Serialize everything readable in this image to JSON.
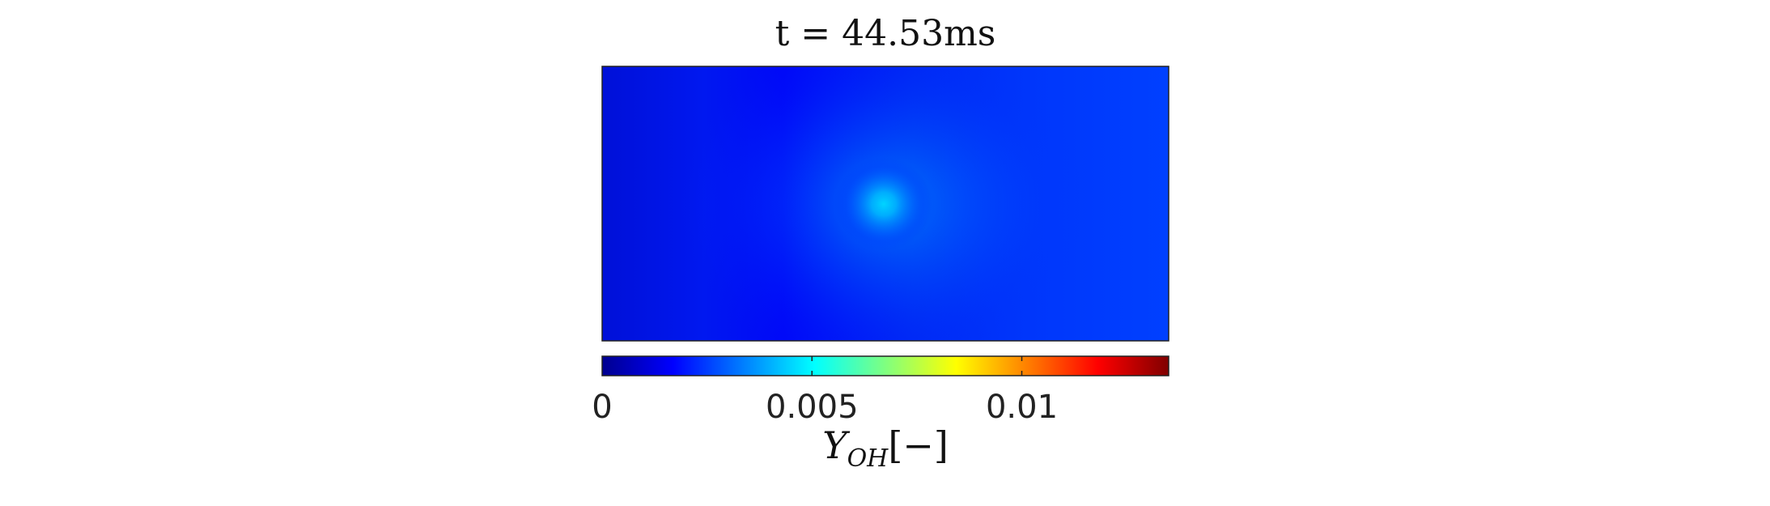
{
  "chart_data": {
    "type": "heatmap",
    "title": "t = 44.53ms",
    "field": "Y_OH",
    "colorbar": {
      "label_main": "Y",
      "label_sub": "OH",
      "label_unit": "[−]",
      "min": 0,
      "max": 0.0135,
      "ticks": [
        {
          "value": 0,
          "label": "0"
        },
        {
          "value": 0.005,
          "label": "0.005"
        },
        {
          "value": 0.01,
          "label": "0.01"
        }
      ],
      "colormap": "jet",
      "orientation": "horizontal",
      "placement": "bottom"
    },
    "field_values": {
      "background_level": 0.003,
      "peak_value": 0.0052
    }
  }
}
